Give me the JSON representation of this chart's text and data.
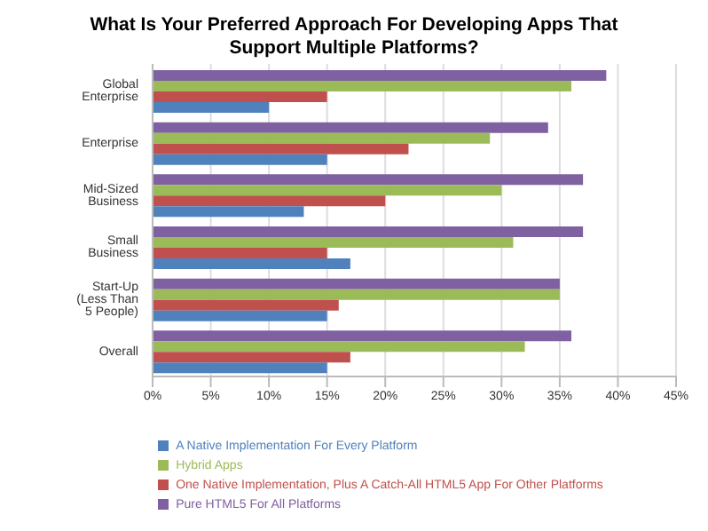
{
  "chart_data": {
    "type": "bar",
    "orientation": "horizontal",
    "title": "What Is Your Preferred Approach For Developing Apps That Support Multiple Platforms?",
    "categories": [
      "Global Enterprise",
      "Enterprise",
      "Mid-Sized Business",
      "Small Business",
      "Start-Up (Less Than 5 People)",
      "Overall"
    ],
    "series": [
      {
        "name": "Pure HTML5 For All Platforms",
        "color": "#7f60a0",
        "values": [
          39,
          34,
          37,
          37,
          35,
          36
        ]
      },
      {
        "name": "Hybrid Apps",
        "color": "#9bbb59",
        "values": [
          36,
          29,
          30,
          31,
          35,
          32
        ]
      },
      {
        "name": "One Native Implementation, Plus A Catch-All HTML5 App For Other Platforms",
        "color": "#c0504d",
        "values": [
          15,
          22,
          20,
          15,
          16,
          17
        ]
      },
      {
        "name": "A Native Implementation For Every Platform",
        "color": "#4f81bd",
        "values": [
          10,
          15,
          13,
          17,
          15,
          15
        ]
      }
    ],
    "xlim": [
      0,
      45
    ],
    "xticks": [
      {
        "value": 0,
        "label": "0%"
      },
      {
        "value": 5,
        "label": "5%"
      },
      {
        "value": 10,
        "label": "10%"
      },
      {
        "value": 15,
        "label": "15%"
      },
      {
        "value": 20,
        "label": "20%"
      },
      {
        "value": 25,
        "label": "25%"
      },
      {
        "value": 30,
        "label": "30%"
      },
      {
        "value": 35,
        "label": "35%"
      },
      {
        "value": 40,
        "label": "40%"
      },
      {
        "value": 45,
        "label": "45%"
      }
    ],
    "grid": "x",
    "legend": "bottom"
  }
}
